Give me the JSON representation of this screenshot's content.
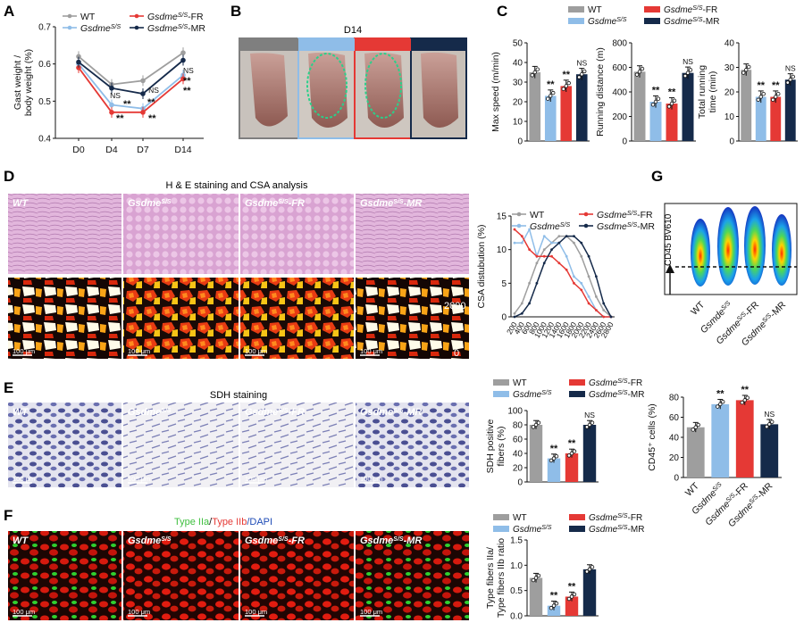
{
  "panels": {
    "A": "A",
    "B": "B",
    "C": "C",
    "D": "D",
    "E": "E",
    "F": "F",
    "G": "G"
  },
  "groups": {
    "wt": "WT",
    "s": "Gsdme",
    "s_sup": "S/S",
    "fr": "-FR",
    "mr": "-MR",
    "g_alt": "Gsmde"
  },
  "colors": {
    "wt": "#9e9e9e",
    "s": "#8fbde8",
    "fr": "#e53935",
    "mr": "#152a4a",
    "he_pink": "#dcaed6"
  },
  "annotations": {
    "star2": "**",
    "ns": "NS",
    "d14": "D14",
    "he_title": "H & E staining and CSA analysis",
    "sdh_title": "SDH staining",
    "fiber_type_iia": "Type IIa",
    "fiber_slash": "/",
    "fiber_type_iib": "Type IIb",
    "fiber_dapi": "/DAPI",
    "scale": "100 μm",
    "heat_max": "2000",
    "heat_min": "0",
    "cd45": "CD45 BV610"
  },
  "chart_data": [
    {
      "id": "A",
      "type": "line",
      "title": "",
      "ylabel_1": "Gast weight /",
      "ylabel_2": "body weight (%)",
      "xlabel": "",
      "categories": [
        "D0",
        "D4",
        "D7",
        "D14"
      ],
      "ylim": [
        0.4,
        0.7
      ],
      "yticks": [
        "0.4",
        "0.5",
        "0.6",
        "0.7"
      ],
      "series": [
        {
          "key": "wt",
          "values": [
            0.62,
            0.545,
            0.555,
            0.63
          ]
        },
        {
          "key": "s",
          "values": [
            0.6,
            0.49,
            0.48,
            0.57
          ]
        },
        {
          "key": "fr",
          "values": [
            0.59,
            0.47,
            0.47,
            0.56
          ]
        },
        {
          "key": "mr",
          "values": [
            0.605,
            0.535,
            0.52,
            0.61
          ]
        }
      ]
    },
    {
      "id": "C1",
      "type": "bar",
      "ylabel": "Max speed (m/min)",
      "ylim": [
        0,
        50
      ],
      "yticks": [
        "0",
        "10",
        "20",
        "30",
        "40",
        "50"
      ],
      "values": [
        35,
        23,
        28,
        34
      ],
      "sig": [
        "",
        "**",
        "**",
        "NS"
      ]
    },
    {
      "id": "C2",
      "type": "bar",
      "ylabel": "Running distance (m)",
      "ylim": [
        0,
        800
      ],
      "yticks": [
        "0",
        "200",
        "400",
        "600",
        "800"
      ],
      "values": [
        565,
        320,
        305,
        555
      ],
      "sig": [
        "",
        "**",
        "**",
        "NS"
      ]
    },
    {
      "id": "C3",
      "type": "bar",
      "ylabel_1": "Total running",
      "ylabel_2": "time (min)",
      "ylim": [
        0,
        40
      ],
      "yticks": [
        "0",
        "10",
        "20",
        "30",
        "40"
      ],
      "values": [
        29,
        18,
        18,
        25
      ],
      "sig": [
        "",
        "**",
        "**",
        "NS"
      ]
    },
    {
      "id": "D",
      "type": "line",
      "ylabel": "CSA distubution (%)",
      "xlabel": "",
      "ylim": [
        0,
        15
      ],
      "yticks": [
        "0",
        "5",
        "10",
        "15"
      ],
      "x": [
        "200",
        "400",
        "600",
        "800",
        "1000",
        "1200",
        "1400",
        "1600",
        "1800",
        "2000",
        "2200",
        "2400",
        "2600",
        "2800"
      ],
      "series": [
        {
          "key": "wt",
          "values": [
            0.5,
            2,
            5,
            8,
            10,
            11,
            12,
            12,
            11,
            9,
            6,
            3,
            1,
            0
          ]
        },
        {
          "key": "s",
          "values": [
            11,
            11,
            13,
            9,
            12,
            11,
            11,
            9,
            6,
            5,
            3,
            1,
            0,
            0
          ]
        },
        {
          "key": "fr",
          "values": [
            13,
            12,
            10,
            9,
            9,
            9,
            8,
            7,
            5,
            4,
            2,
            1,
            0,
            0
          ]
        },
        {
          "key": "mr",
          "values": [
            0,
            0.5,
            2,
            5,
            8,
            10,
            11,
            12,
            12,
            11,
            9,
            6,
            2,
            0
          ]
        }
      ]
    },
    {
      "id": "E",
      "type": "bar",
      "ylabel_1": "SDH positive",
      "ylabel_2": "fibers (%)",
      "ylim": [
        0,
        100
      ],
      "yticks": [
        "0",
        "20",
        "40",
        "60",
        "80",
        "100"
      ],
      "values": [
        80,
        33,
        40,
        80
      ],
      "sig": [
        "",
        "**",
        "**",
        "NS"
      ]
    },
    {
      "id": "F",
      "type": "bar",
      "ylabel_1": "Type fibers IIa/",
      "ylabel_2": "Type fibers IIb ratio",
      "ylim": [
        0,
        1.5
      ],
      "yticks": [
        "0.0",
        "0.5",
        "1.0",
        "1.5"
      ],
      "values": [
        0.75,
        0.2,
        0.38,
        0.92
      ],
      "sig": [
        "",
        "**",
        "**",
        ""
      ]
    },
    {
      "id": "G",
      "type": "bar",
      "ylabel": "CD45⁺ cells (%)",
      "ylim": [
        0,
        80
      ],
      "yticks": [
        "0",
        "20",
        "40",
        "60",
        "80"
      ],
      "values": [
        50,
        73,
        77,
        53
      ],
      "sig": [
        "",
        "**",
        "**",
        "NS"
      ]
    }
  ]
}
